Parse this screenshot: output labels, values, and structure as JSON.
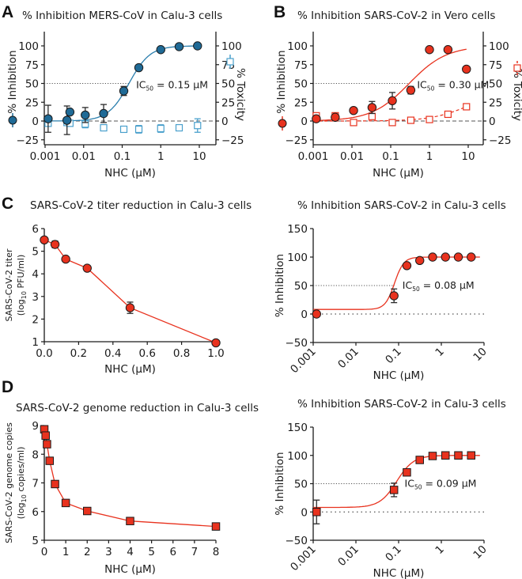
{
  "colors": {
    "blue_fill": "#1f6a96",
    "blue_line": "#2b7fae",
    "blue_open": "#4aa0cc",
    "red_fill": "#e8321e",
    "red_line": "#e8321e",
    "axis": "#1a1a1a",
    "error": "#2a2a2a",
    "dashed": "#555555",
    "dotted": "#555555"
  },
  "chart_data": [
    {
      "id": "A",
      "panel_label": "A",
      "type": "scatter",
      "title": "% Inhibition MERS-CoV in Calu-3 cells",
      "xlabel": "NHC (μM)",
      "ylabel": "% Inhibition",
      "ylabel_right": "% Toxicity",
      "xscale": "log",
      "xlim": [
        0.001,
        20
      ],
      "ylim": [
        -30,
        120
      ],
      "xticks": [
        0.001,
        0.01,
        0.1,
        1,
        10
      ],
      "xtick_labels": [
        "0.001",
        "0.01",
        "0.1",
        "1",
        "10"
      ],
      "yticks": [
        -25,
        0,
        25,
        50,
        75,
        100
      ],
      "ytick_labels": [
        "−25",
        "0",
        "25",
        "50",
        "75",
        "100"
      ],
      "yticks_right": [
        -25,
        0,
        25,
        50,
        75,
        100
      ],
      "ytick_labels_right": [
        "−25",
        "0",
        "25",
        "50",
        "75",
        "100"
      ],
      "annotation": {
        "text_main": "IC",
        "text_sub": "50",
        "text_rest": " = 0.15 μM",
        "x": 0.15,
        "y": 50
      },
      "ic50": 0.15,
      "series": [
        {
          "name": "% Inhibition",
          "marker": "circle",
          "color_key": "blue_fill",
          "filled": true,
          "x": [
            0.0012,
            0.0037,
            0.0044,
            0.011,
            0.033,
            0.11,
            0.27,
            1.0,
            3.0,
            9.0
          ],
          "y": [
            3,
            1,
            12,
            8,
            10,
            40,
            71,
            95,
            99,
            100
          ],
          "err": [
            18,
            19,
            0,
            10,
            12,
            6,
            0,
            0,
            0,
            0
          ]
        },
        {
          "name": "% Toxicity",
          "marker": "square",
          "color_key": "blue_open",
          "filled": false,
          "x": [
            0.0012,
            0.0037,
            0.0044,
            0.011,
            0.033,
            0.11,
            0.27,
            1.0,
            3.0,
            9.0
          ],
          "y": [
            -3,
            -2,
            -3,
            -4,
            -9,
            -11,
            -11,
            -10,
            -9,
            -6
          ],
          "err": [
            3,
            3,
            3,
            5,
            0,
            0,
            5,
            5,
            4,
            9
          ]
        }
      ],
      "fit": {
        "bottom": 0,
        "top": 100,
        "ic50": 0.15,
        "hill": 1.6,
        "color_key": "blue_line",
        "xrange": [
          0.001,
          9
        ]
      }
    },
    {
      "id": "B",
      "panel_label": "B",
      "type": "scatter",
      "title": "% Inhibition SARS-CoV-2 in Vero cells",
      "xlabel": "NHC (μM)",
      "ylabel": "% Inhibition",
      "ylabel_right": "% Toxicity",
      "xscale": "log",
      "xlim": [
        0.001,
        20
      ],
      "ylim": [
        -30,
        120
      ],
      "xticks": [
        0.001,
        0.01,
        0.1,
        1,
        10
      ],
      "xtick_labels": [
        "0.001",
        "0.01",
        "0.1",
        "1",
        "10"
      ],
      "yticks": [
        -25,
        0,
        25,
        50,
        75,
        100
      ],
      "ytick_labels": [
        "−25",
        "0",
        "25",
        "50",
        "75",
        "100"
      ],
      "yticks_right": [
        -25,
        0,
        25,
        50,
        75,
        100
      ],
      "ytick_labels_right": [
        "−25",
        "0",
        "25",
        "50",
        "75",
        "100"
      ],
      "annotation": {
        "text_main": "IC",
        "text_sub": "50",
        "text_rest": " = 0.30 μM",
        "x": 0.3,
        "y": 50
      },
      "ic50": 0.3,
      "series": [
        {
          "name": "% Inhibition",
          "marker": "circle",
          "color_key": "red_fill",
          "filled": true,
          "x": [
            0.0012,
            0.0037,
            0.011,
            0.033,
            0.11,
            0.33,
            1.0,
            3.0,
            9.0
          ],
          "y": [
            3,
            5,
            14,
            18,
            27,
            41,
            95,
            95,
            69
          ],
          "err": [
            0,
            0,
            0,
            8,
            11,
            5,
            0,
            0,
            0
          ]
        },
        {
          "name": "% Toxicity",
          "marker": "square",
          "color_key": "red_fill",
          "filled": false,
          "x": [
            0.0012,
            0.0037,
            0.011,
            0.033,
            0.11,
            0.33,
            1.0,
            3.0,
            9.0
          ],
          "y": [
            7,
            7,
            -2,
            6,
            -2,
            1,
            2,
            9,
            19
          ],
          "err": [
            0,
            0,
            0,
            0,
            0,
            0,
            0,
            0,
            0
          ]
        }
      ],
      "fit": {
        "bottom": 0,
        "top": 100,
        "ic50": 0.3,
        "hill": 0.9,
        "color_key": "red_line",
        "xrange": [
          0.001,
          9
        ]
      },
      "toxicity_fit": {
        "dashed": true,
        "color_key": "red_line"
      }
    },
    {
      "id": "C-left",
      "panel_label": "C",
      "type": "line",
      "title": "SARS-CoV-2 titer reduction in Calu-3 cells",
      "xlabel": "NHC (μM)",
      "ylabel_line1": "SARS-CoV-2 titer",
      "ylabel_line2_pre": "(log",
      "ylabel_line2_sub": "10",
      "ylabel_line2_post": " PFU/ml)",
      "xscale": "linear",
      "xlim": [
        0,
        1.0
      ],
      "ylim": [
        1,
        6
      ],
      "xticks": [
        0.0,
        0.2,
        0.4,
        0.6,
        0.8,
        1.0
      ],
      "xtick_labels": [
        "0.0",
        "0.2",
        "0.4",
        "0.6",
        "0.8",
        "1.0"
      ],
      "yticks": [
        1,
        2,
        3,
        4,
        5,
        6
      ],
      "ytick_labels": [
        "1",
        "2",
        "3",
        "4",
        "5",
        "6"
      ],
      "series": [
        {
          "name": "titer",
          "marker": "circle",
          "color_key": "red_fill",
          "filled": true,
          "x": [
            0.0,
            0.0625,
            0.125,
            0.25,
            0.5,
            1.0
          ],
          "y": [
            5.5,
            5.3,
            4.65,
            4.25,
            2.5,
            0.95
          ],
          "err": [
            0,
            0.15,
            0,
            0,
            0.25,
            0
          ]
        }
      ]
    },
    {
      "id": "C-right",
      "panel_label": "",
      "type": "scatter",
      "title": "% Inhibition SARS-CoV-2 in Calu-3 cells",
      "xlabel": "NHC (μM)",
      "ylabel": "% Inhibition",
      "xscale": "log",
      "xlim": [
        0.001,
        10
      ],
      "ylim": [
        -50,
        150
      ],
      "xticks": [
        0.001,
        0.01,
        0.1,
        1,
        10
      ],
      "xtick_labels": [
        "0.001",
        "0.01",
        "0.1",
        "1",
        "10"
      ],
      "yticks": [
        -50,
        0,
        50,
        100,
        150
      ],
      "ytick_labels": [
        "−50",
        "0",
        "50",
        "100",
        "150"
      ],
      "annotation": {
        "text_main": "IC",
        "text_sub": "50",
        "text_rest": " = 0.08 μM",
        "x": 0.08,
        "y": 50
      },
      "ic50": 0.08,
      "series": [
        {
          "name": "% Inhibition",
          "marker": "circle",
          "color_key": "red_fill",
          "filled": true,
          "x": [
            0.0012,
            0.078,
            0.156,
            0.3125,
            0.625,
            1.25,
            2.5,
            5.0
          ],
          "y": [
            0,
            32,
            85,
            94,
            100,
            100,
            100,
            100
          ],
          "err": [
            0,
            12,
            0,
            0,
            0,
            0,
            0,
            0
          ]
        }
      ],
      "fit": {
        "bottom": 8,
        "top": 100,
        "ic50": 0.08,
        "hill": 4.0,
        "color_key": "red_line",
        "xrange": [
          0.001,
          8
        ]
      }
    },
    {
      "id": "D-left",
      "panel_label": "D",
      "type": "line",
      "title": "SARS-CoV-2 genome reduction in Calu-3 cells",
      "xlabel": "NHC (μM)",
      "ylabel_line1": "SARS-CoV-2 genome copies",
      "ylabel_line2_pre": "(log",
      "ylabel_line2_sub": "10",
      "ylabel_line2_post": " copies/ml)",
      "xscale": "linear",
      "xlim": [
        0,
        8
      ],
      "ylim": [
        5,
        9
      ],
      "xticks": [
        0,
        1,
        2,
        3,
        4,
        5,
        6,
        7,
        8
      ],
      "xtick_labels": [
        "0",
        "1",
        "2",
        "3",
        "4",
        "5",
        "6",
        "7",
        "8"
      ],
      "yticks": [
        5,
        6,
        7,
        8,
        9
      ],
      "ytick_labels": [
        "5",
        "6",
        "7",
        "8",
        "9"
      ],
      "series": [
        {
          "name": "genome copies",
          "marker": "square",
          "color_key": "red_fill",
          "filled": true,
          "x": [
            0.0,
            0.0625,
            0.125,
            0.25,
            0.5,
            1,
            2,
            4,
            8
          ],
          "y": [
            8.87,
            8.65,
            8.35,
            7.77,
            6.96,
            6.3,
            6.02,
            5.67,
            5.48
          ],
          "err": [
            0,
            0,
            0,
            0,
            0,
            0,
            0,
            0,
            0
          ]
        }
      ]
    },
    {
      "id": "D-right",
      "panel_label": "",
      "type": "scatter",
      "title": "% Inhibition SARS-CoV-2 in Calu-3 cells",
      "xlabel": "NHC (μM)",
      "ylabel": "% Inhibition",
      "xscale": "log",
      "xlim": [
        0.001,
        10
      ],
      "ylim": [
        -50,
        150
      ],
      "xticks": [
        0.001,
        0.01,
        0.1,
        1,
        10
      ],
      "xtick_labels": [
        "0.001",
        "0.01",
        "0.1",
        "1",
        "10"
      ],
      "yticks": [
        -50,
        0,
        50,
        100,
        150
      ],
      "ytick_labels": [
        "−50",
        "0",
        "50",
        "100",
        "150"
      ],
      "annotation": {
        "text_main": "IC",
        "text_sub": "50",
        "text_rest": " = 0.09 μM",
        "x": 0.09,
        "y": 50
      },
      "ic50": 0.09,
      "series": [
        {
          "name": "% Inhibition",
          "marker": "square",
          "color_key": "red_fill",
          "filled": true,
          "x": [
            0.0012,
            0.078,
            0.156,
            0.3125,
            0.625,
            1.25,
            2.5,
            5.0
          ],
          "y": [
            0,
            39,
            70,
            92,
            99,
            100,
            100,
            100
          ],
          "err": [
            21,
            12,
            0,
            0,
            0,
            0,
            0,
            0
          ]
        }
      ],
      "fit": {
        "bottom": 8,
        "top": 100,
        "ic50": 0.09,
        "hill": 2.2,
        "color_key": "red_line",
        "xrange": [
          0.001,
          8
        ]
      }
    }
  ]
}
